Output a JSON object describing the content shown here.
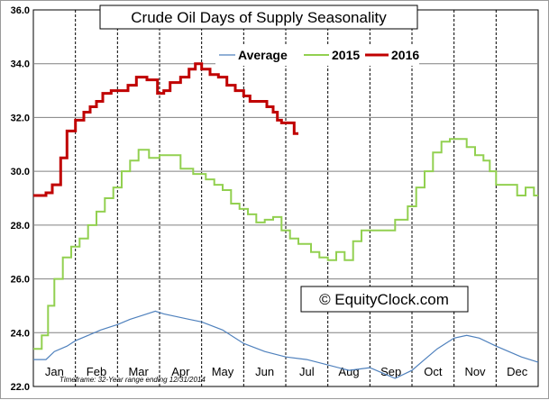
{
  "chart_data": {
    "type": "line",
    "title": "Crude Oil Days of Supply Seasonality",
    "xlabel": "",
    "ylabel": "",
    "ylim": [
      22.0,
      36.0
    ],
    "xlim": [
      0,
      12
    ],
    "y_ticks": [
      "22.0",
      "24.0",
      "26.0",
      "28.0",
      "30.0",
      "32.0",
      "34.0",
      "36.0"
    ],
    "categories": [
      "Jan",
      "Feb",
      "Mar",
      "Apr",
      "May",
      "Jun",
      "Jul",
      "Aug",
      "Sep",
      "Oct",
      "Nov",
      "Dec"
    ],
    "grid": true,
    "legend_position": "top",
    "watermark": "© EquityClock.com",
    "footnote": "Timeframe: 32-Year range ending 12/31/2014",
    "series": [
      {
        "name": "Average",
        "color": "#4f81bd",
        "step": false,
        "x": [
          0,
          0.3,
          0.5,
          0.8,
          1.0,
          1.3,
          1.6,
          2.0,
          2.3,
          2.5,
          2.7,
          2.9,
          3.1,
          3.4,
          3.7,
          4.0,
          4.5,
          5.0,
          5.5,
          6.0,
          6.5,
          7.0,
          7.5,
          8.0,
          8.3,
          8.6,
          9.0,
          9.3,
          9.6,
          10.0,
          10.3,
          10.6,
          11.0,
          11.3,
          11.6,
          12.0
        ],
        "values": [
          23.0,
          23.0,
          23.3,
          23.5,
          23.7,
          23.9,
          24.1,
          24.3,
          24.5,
          24.6,
          24.7,
          24.8,
          24.7,
          24.6,
          24.5,
          24.4,
          24.1,
          23.6,
          23.3,
          23.1,
          23.0,
          22.8,
          22.6,
          22.7,
          22.5,
          22.3,
          22.6,
          23.0,
          23.4,
          23.8,
          23.9,
          23.8,
          23.5,
          23.3,
          23.1,
          22.9
        ]
      },
      {
        "name": "2015",
        "color": "#92d050",
        "step": true,
        "x": [
          0,
          0.2,
          0.35,
          0.5,
          0.7,
          0.9,
          1.1,
          1.3,
          1.5,
          1.7,
          1.9,
          2.1,
          2.3,
          2.5,
          2.6,
          2.75,
          3.0,
          3.2,
          3.5,
          3.8,
          4.1,
          4.3,
          4.5,
          4.7,
          4.9,
          5.1,
          5.3,
          5.5,
          5.7,
          5.9,
          6.1,
          6.3,
          6.6,
          6.8,
          7.0,
          7.2,
          7.4,
          7.6,
          7.8,
          8.0,
          8.3,
          8.6,
          8.9,
          9.1,
          9.3,
          9.5,
          9.7,
          9.9,
          10.1,
          10.3,
          10.5,
          10.7,
          10.85,
          11.0,
          11.2,
          11.5,
          11.7,
          11.9
        ],
        "values": [
          23.4,
          23.9,
          25.0,
          26.0,
          26.8,
          27.2,
          27.5,
          28.0,
          28.5,
          29.0,
          29.4,
          30.0,
          30.4,
          30.8,
          30.8,
          30.5,
          30.6,
          30.6,
          30.1,
          29.9,
          29.7,
          29.5,
          29.3,
          28.8,
          28.6,
          28.4,
          28.1,
          28.2,
          28.3,
          27.8,
          27.5,
          27.3,
          27.0,
          26.8,
          26.7,
          27.0,
          26.7,
          27.4,
          27.8,
          27.8,
          27.8,
          28.2,
          28.7,
          29.4,
          30.0,
          30.7,
          31.1,
          31.2,
          31.2,
          30.9,
          30.6,
          30.4,
          30.0,
          29.5,
          29.5,
          29.1,
          29.4,
          29.1
        ]
      },
      {
        "name": "2016",
        "color": "#c00000",
        "step": true,
        "x": [
          0,
          0.3,
          0.45,
          0.65,
          0.8,
          1.0,
          1.2,
          1.35,
          1.5,
          1.65,
          1.85,
          2.05,
          2.25,
          2.45,
          2.7,
          2.95,
          3.1,
          3.25,
          3.5,
          3.7,
          3.85,
          4.0,
          4.2,
          4.4,
          4.6,
          4.8,
          5.0,
          5.15,
          5.35,
          5.55,
          5.7,
          5.8,
          5.9,
          6.05,
          6.2
        ],
        "values": [
          29.1,
          29.2,
          29.5,
          30.5,
          31.5,
          31.9,
          32.2,
          32.4,
          32.6,
          32.9,
          33.0,
          33.0,
          33.2,
          33.5,
          33.4,
          32.9,
          33.0,
          33.3,
          33.5,
          33.8,
          34.0,
          33.8,
          33.6,
          33.5,
          33.2,
          33.0,
          32.8,
          32.6,
          32.6,
          32.4,
          32.2,
          31.9,
          31.8,
          31.8,
          31.4
        ]
      }
    ]
  }
}
